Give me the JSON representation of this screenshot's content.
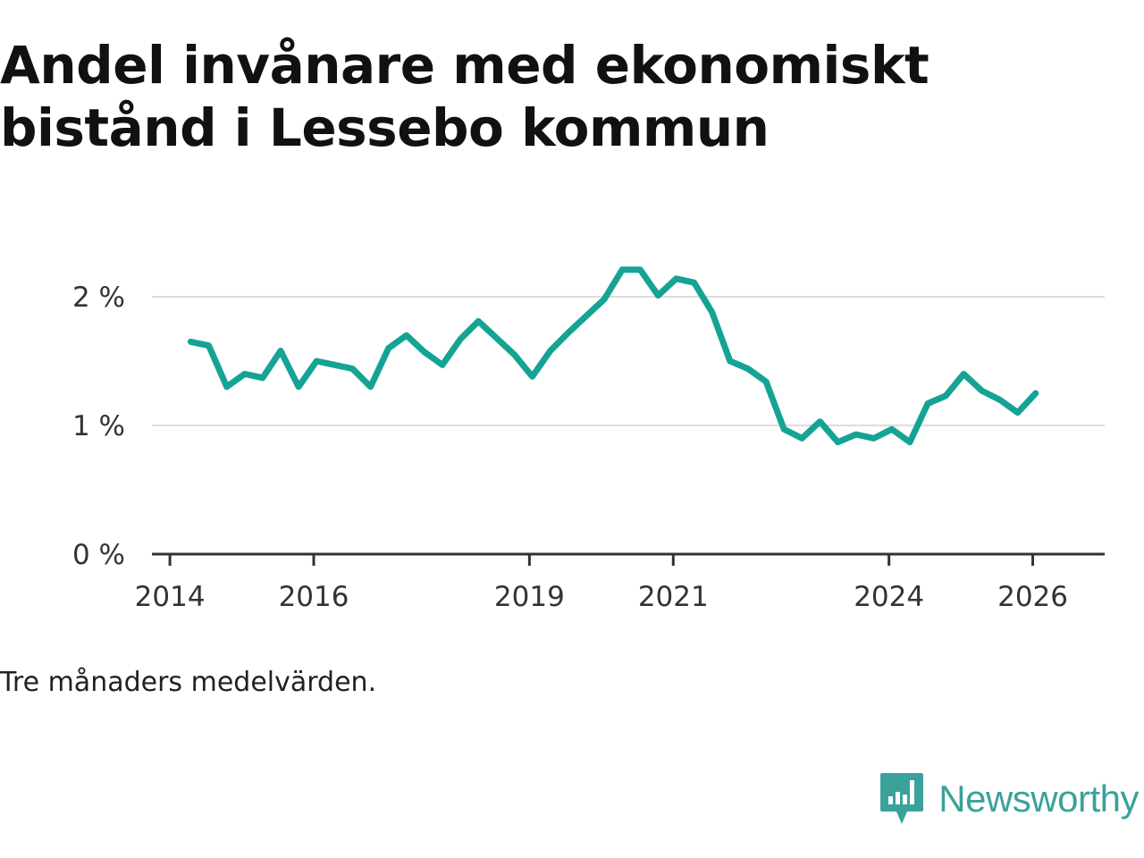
{
  "title": "Andel invånare med ekonomiskt bistånd i Lessebo kommun",
  "note": "Tre månaders medelvärden.",
  "brand": "Newsworthy",
  "colors": {
    "line": "#14a395",
    "grid": "#dddddd",
    "axis": "#333333",
    "brand": "#3aa29a"
  },
  "chart_data": {
    "type": "line",
    "title": "Andel invånare med ekonomiskt bistånd i Lessebo kommun",
    "xlabel": "",
    "ylabel": "",
    "xlim": [
      2013.75,
      2027.0
    ],
    "ylim": [
      0,
      2.5
    ],
    "y_ticks": [
      0,
      1,
      2
    ],
    "y_tick_labels": [
      "0 %",
      "1 %",
      "2 %"
    ],
    "x_ticks": [
      2014,
      2016,
      2019,
      2021,
      2024,
      2026
    ],
    "x_tick_labels": [
      "2014",
      "2016",
      "2019",
      "2021",
      "2024",
      "2026"
    ],
    "grid": true,
    "series": [
      {
        "name": "Andel med ekonomiskt bistånd",
        "x": [
          2014.29,
          2014.54,
          2014.79,
          2015.04,
          2015.29,
          2015.54,
          2015.79,
          2016.04,
          2016.29,
          2016.54,
          2016.79,
          2017.04,
          2017.29,
          2017.54,
          2017.79,
          2018.04,
          2018.29,
          2018.54,
          2018.79,
          2019.04,
          2019.29,
          2019.54,
          2019.79,
          2020.04,
          2020.29,
          2020.54,
          2020.79,
          2021.04,
          2021.29,
          2021.54,
          2021.79,
          2022.04,
          2022.29,
          2022.54,
          2022.79,
          2023.04,
          2023.29,
          2023.54,
          2023.79,
          2024.04,
          2024.29,
          2024.54,
          2024.79,
          2025.04,
          2025.29,
          2025.54,
          2025.79,
          2026.04
        ],
        "values": [
          1.65,
          1.62,
          1.3,
          1.4,
          1.37,
          1.58,
          1.3,
          1.5,
          1.47,
          1.44,
          1.3,
          1.6,
          1.7,
          1.57,
          1.47,
          1.67,
          1.81,
          1.68,
          1.55,
          1.38,
          1.58,
          1.72,
          1.85,
          1.98,
          2.21,
          2.21,
          2.01,
          2.14,
          2.11,
          1.88,
          1.5,
          1.44,
          1.34,
          0.97,
          0.9,
          1.03,
          0.87,
          0.93,
          0.9,
          0.97,
          0.87,
          1.17,
          1.23,
          1.4,
          1.27,
          1.2,
          1.1,
          1.25
        ]
      }
    ]
  }
}
